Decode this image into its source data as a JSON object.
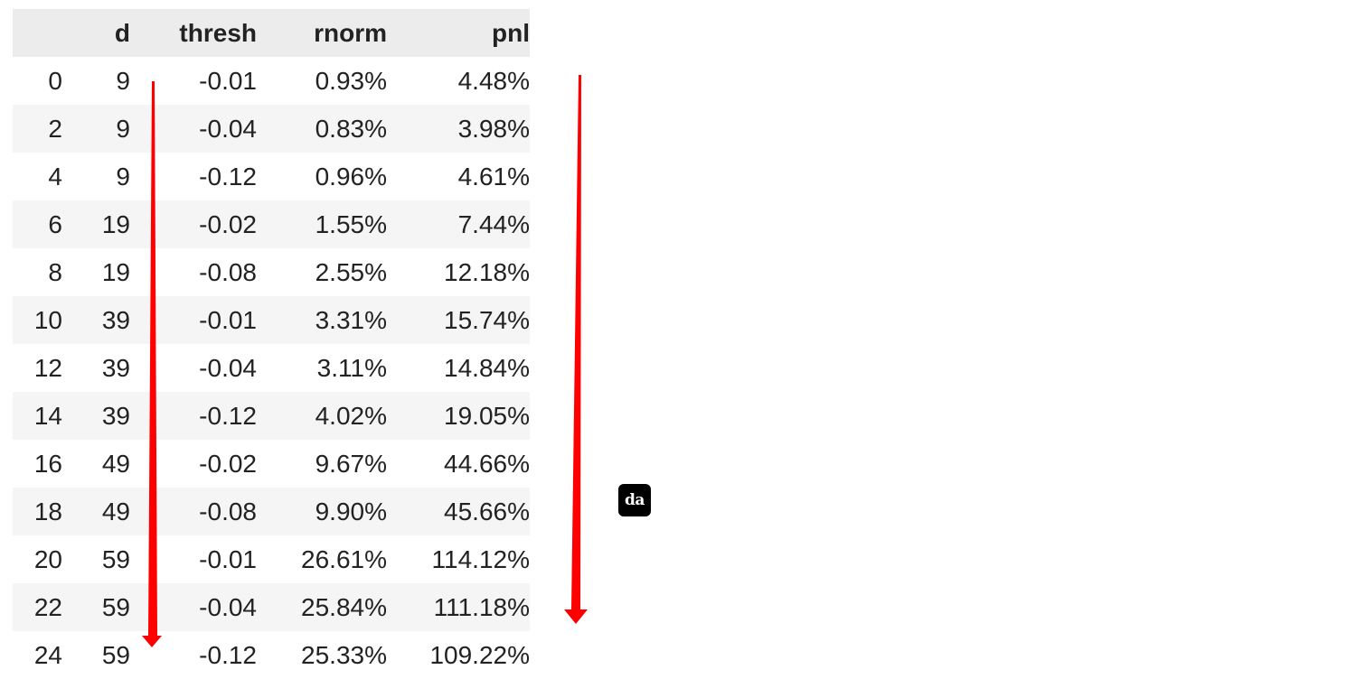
{
  "table": {
    "columns": [
      "",
      "d",
      "thresh",
      "rnorm",
      "pnl"
    ],
    "rows": [
      [
        "0",
        "9",
        "-0.01",
        "0.93%",
        "4.48%"
      ],
      [
        "2",
        "9",
        "-0.04",
        "0.83%",
        "3.98%"
      ],
      [
        "4",
        "9",
        "-0.12",
        "0.96%",
        "4.61%"
      ],
      [
        "6",
        "19",
        "-0.02",
        "1.55%",
        "7.44%"
      ],
      [
        "8",
        "19",
        "-0.08",
        "2.55%",
        "12.18%"
      ],
      [
        "10",
        "39",
        "-0.01",
        "3.31%",
        "15.74%"
      ],
      [
        "12",
        "39",
        "-0.04",
        "3.11%",
        "14.84%"
      ],
      [
        "14",
        "39",
        "-0.12",
        "4.02%",
        "19.05%"
      ],
      [
        "16",
        "49",
        "-0.02",
        "9.67%",
        "44.66%"
      ],
      [
        "18",
        "49",
        "-0.08",
        "9.90%",
        "45.66%"
      ],
      [
        "20",
        "59",
        "-0.01",
        "26.61%",
        "114.12%"
      ],
      [
        "22",
        "59",
        "-0.04",
        "25.84%",
        "111.18%"
      ],
      [
        "24",
        "59",
        "-0.12",
        "25.33%",
        "109.22%"
      ]
    ]
  },
  "annotations": {
    "arrow_color": "#ff0000",
    "arrows": [
      "down-arrow-d-column",
      "down-arrow-pnl-column"
    ]
  },
  "badge": {
    "label": "da"
  }
}
